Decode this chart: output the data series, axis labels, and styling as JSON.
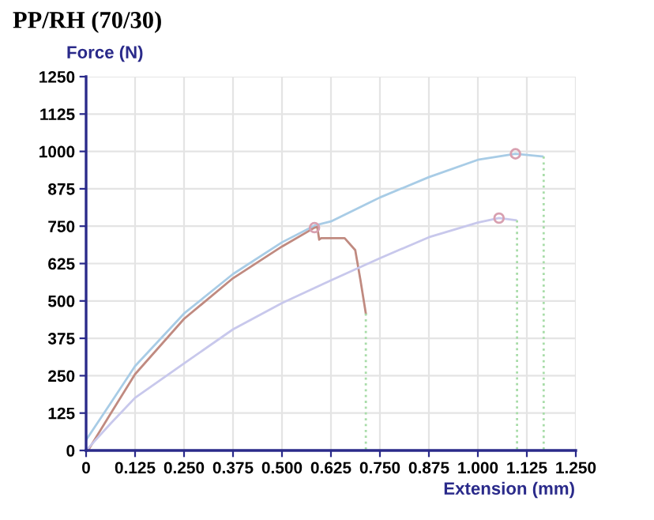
{
  "chart_data": {
    "type": "line",
    "title": "PP/RH (70/30)",
    "xlabel": "Extension (mm)",
    "ylabel": "Force (N)",
    "xlim": [
      0,
      1.25
    ],
    "xticks": [
      0,
      {
        "value": 0.125,
        "label": "0.125"
      },
      {
        "value": 0.25,
        "label": "0.250"
      },
      {
        "value": 0.375,
        "label": "0.375"
      },
      {
        "value": 0.5,
        "label": "0.500"
      },
      {
        "value": 0.625,
        "label": "0.625"
      },
      {
        "value": 0.75,
        "label": "0.750"
      },
      {
        "value": 0.875,
        "label": "0.875"
      },
      {
        "value": 1.0,
        "label": "1.000"
      },
      {
        "value": 1.125,
        "label": "1.125"
      },
      {
        "value": 1.25,
        "label": "1.250"
      }
    ],
    "ylim": [
      0,
      1250
    ],
    "yticks": [
      0,
      125,
      250,
      375,
      500,
      625,
      750,
      875,
      1000,
      1125,
      1250
    ],
    "grid": true,
    "legend": false,
    "series": [
      {
        "color": "#a8cce6",
        "x": [
          0,
          0.0625,
          0.125,
          0.25,
          0.375,
          0.5,
          0.583,
          0.625,
          0.75,
          0.875,
          1.0,
          1.096,
          1.165
        ],
        "values": [
          35,
          158,
          282,
          458,
          590,
          696,
          752,
          766,
          846,
          914,
          972,
          992,
          983
        ]
      },
      {
        "color": "#c08a80",
        "x": [
          0.005,
          0.0625,
          0.125,
          0.25,
          0.375,
          0.5,
          0.583,
          0.59,
          0.595,
          0.6,
          0.66,
          0.687,
          0.7,
          0.714
        ],
        "values": [
          0,
          123,
          255,
          440,
          576,
          682,
          745,
          748,
          705,
          710,
          710,
          670,
          572,
          458
        ]
      },
      {
        "color": "#c8c8ec",
        "x": [
          0,
          0.0625,
          0.125,
          0.25,
          0.375,
          0.5,
          0.625,
          0.75,
          0.875,
          1.0,
          1.054,
          1.097
        ],
        "values": [
          0,
          90,
          176,
          291,
          405,
          493,
          569,
          643,
          713,
          762,
          777,
          770
        ]
      },
      {
        "color": "#a8dca8",
        "line_style": "dotted",
        "x": [
          0.714,
          0.714
        ],
        "values": [
          458,
          0
        ]
      },
      {
        "color": "#a8dca8",
        "line_style": "dotted",
        "x": [
          1.1,
          1.1
        ],
        "values": [
          770,
          0
        ]
      },
      {
        "color": "#a8dca8",
        "line_style": "dotted",
        "x": [
          1.168,
          1.168
        ],
        "values": [
          983,
          0
        ]
      },
      {
        "type": "scatter",
        "marker": "circle",
        "color": "#d8a0b0",
        "x": [
          0.583,
          1.054,
          1.096
        ],
        "values": [
          745,
          777,
          992
        ]
      }
    ]
  }
}
